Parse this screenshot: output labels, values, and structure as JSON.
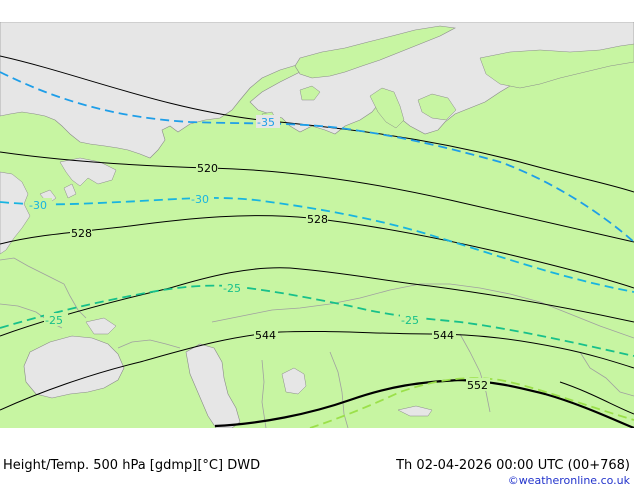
{
  "map": {
    "contour_labels": {
      "h520": "520",
      "h528a": "528",
      "h528b": "528",
      "h544a": "544",
      "h544b": "544",
      "h552": "552"
    },
    "temp_labels": {
      "t35": "-35",
      "t30a": "-30",
      "t30b": "-30",
      "t25a": "-25",
      "t25b": "-25",
      "t25c": "-25"
    },
    "colors": {
      "land": "#c7f5a2",
      "sea": "#e6e6e6",
      "height_contour": "#000000",
      "temp_minus35": "#1e9ee8",
      "temp_minus30": "#18b4e0",
      "temp_minus25": "#17c08a",
      "temp_minus20": "#9be04a",
      "borders": "#a0a0a0"
    }
  },
  "footer": {
    "title": "Height/Temp. 500 hPa [gdmp][°C] DWD",
    "valid_time": "Th 02-04-2026 00:00 UTC (00+768)",
    "credit": "©weatheronline.co.uk"
  }
}
